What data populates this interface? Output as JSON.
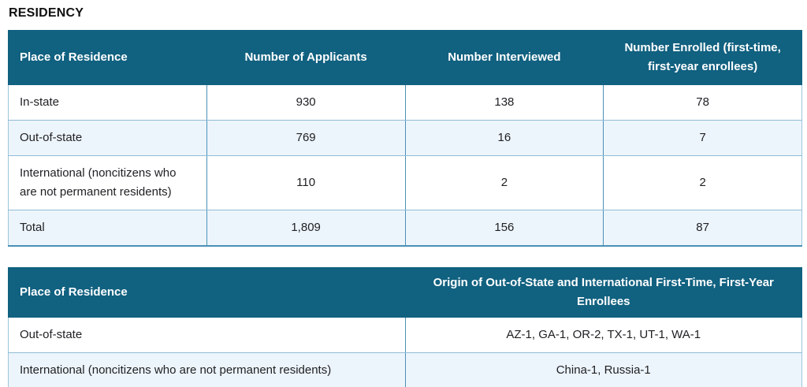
{
  "section": {
    "title": "RESIDENCY"
  },
  "colors": {
    "header_bg": "#116180",
    "header_text": "#ffffff",
    "row_alt_bg": "#edf5fc",
    "border_strong": "#4a90b6",
    "border_light": "#8fbcd6",
    "body_text": "#202124",
    "title_text": "#111111"
  },
  "summary_table": {
    "columns": [
      "Place of Residence",
      "Number of Applicants",
      "Number Interviewed",
      "Number Enrolled (first-time, first-year enrollees)"
    ],
    "rows": [
      {
        "place": "In-state",
        "applicants": "930",
        "interviewed": "138",
        "enrolled": "78"
      },
      {
        "place": "Out-of-state",
        "applicants": "769",
        "interviewed": "16",
        "enrolled": "7"
      },
      {
        "place": "International (noncitizens who are not permanent residents)",
        "applicants": "110",
        "interviewed": "2",
        "enrolled": "2"
      },
      {
        "place": "Total",
        "applicants": "1,809",
        "interviewed": "156",
        "enrolled": "87"
      }
    ]
  },
  "origin_table": {
    "columns": [
      "Place of Residence",
      "Origin of Out-of-State and International First-Time, First-Year Enrollees"
    ],
    "rows": [
      {
        "place": "Out-of-state",
        "origin": "AZ-1, GA-1, OR-2, TX-1, UT-1, WA-1"
      },
      {
        "place": "International (noncitizens who are not permanent residents)",
        "origin": "China-1, Russia-1"
      }
    ]
  }
}
